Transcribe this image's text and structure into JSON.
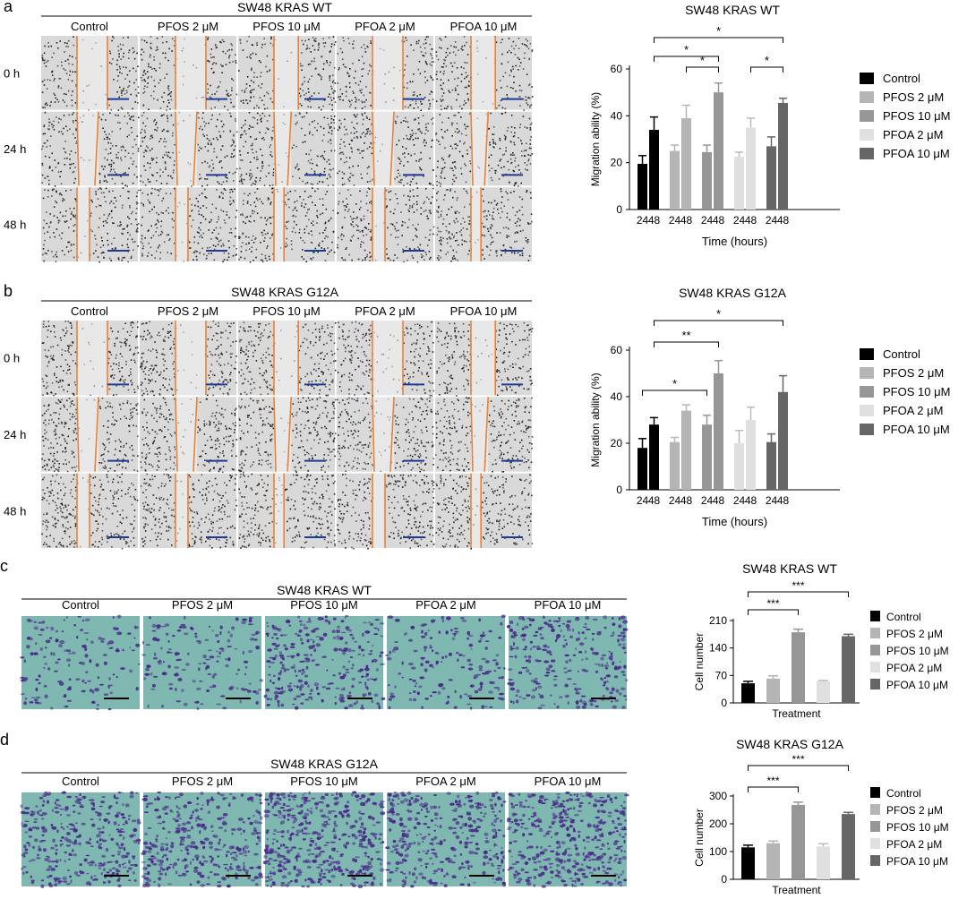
{
  "panels": {
    "a": {
      "letter": "a",
      "title": "SW48 KRAS WT",
      "conditions": [
        "Control",
        "PFOS 2 μM",
        "PFOS 10 μM",
        "PFOA 2 μM",
        "PFOA 10 μM"
      ],
      "rows": [
        "0 h",
        "24 h",
        "48 h"
      ],
      "scale_bar_color": "#1f3a93",
      "gap_line_color": "#e8823a"
    },
    "b": {
      "letter": "b",
      "title": "SW48 KRAS G12A",
      "conditions": [
        "Control",
        "PFOS 2 μM",
        "PFOS 10 μM",
        "PFOA 2 μM",
        "PFOA 10 μM"
      ],
      "rows": [
        "0 h",
        "24 h",
        "48 h"
      ]
    },
    "c": {
      "letter": "c",
      "title": "SW48 KRAS WT",
      "conditions": [
        "Control",
        "PFOS 2 μM",
        "PFOS 10 μM",
        "PFOA 2 μM",
        "PFOA 10 μM"
      ],
      "stain_bg": "#7fb8b0",
      "cell_color": "#4a2a8a"
    },
    "d": {
      "letter": "d",
      "title": "SW48 KRAS G12A",
      "conditions": [
        "Control",
        "PFOS 2 μM",
        "PFOS 10 μM",
        "PFOA 2 μM",
        "PFOA 10 μM"
      ]
    }
  },
  "chart_data": [
    {
      "type": "bar",
      "title": "SW48 KRAS WT",
      "xlabel": "Time (hours)",
      "ylabel": "Migration ability (%)",
      "ylim": [
        0,
        60
      ],
      "yticks": [
        0,
        20,
        40,
        60
      ],
      "legend_position": "right",
      "groups": [
        "24",
        "48"
      ],
      "series": [
        {
          "name": "Control",
          "color": "#000000",
          "values": [
            19.5,
            34
          ],
          "errors": [
            3.5,
            5.5
          ]
        },
        {
          "name": "PFOS 2 μM",
          "color": "#b5b5b5",
          "values": [
            25,
            39
          ],
          "errors": [
            2.5,
            5.5
          ]
        },
        {
          "name": "PFOS 10 μM",
          "color": "#969696",
          "values": [
            24.5,
            50
          ],
          "errors": [
            3,
            4
          ]
        },
        {
          "name": "PFOA 2 μM",
          "color": "#e0e0e0",
          "values": [
            22.5,
            35
          ],
          "errors": [
            2,
            4
          ]
        },
        {
          "name": "PFOA 10 μM",
          "color": "#666666",
          "values": [
            27,
            45.5
          ],
          "errors": [
            4,
            2
          ]
        }
      ],
      "significance": [
        {
          "label": "*",
          "from": [
            0,
            1
          ],
          "to": [
            4,
            1
          ],
          "level": 0
        },
        {
          "label": "*",
          "from": [
            0,
            1
          ],
          "to": [
            2,
            1
          ],
          "level": 1
        },
        {
          "label": "*",
          "from": [
            1,
            1
          ],
          "to": [
            2,
            1
          ],
          "level": 2
        },
        {
          "label": "*",
          "from": [
            3,
            1
          ],
          "to": [
            4,
            1
          ],
          "level": 2
        }
      ]
    },
    {
      "type": "bar",
      "title": "SW48 KRAS G12A",
      "xlabel": "Time (hours)",
      "ylabel": "Migration ability (%)",
      "ylim": [
        0,
        60
      ],
      "yticks": [
        0,
        20,
        40,
        60
      ],
      "legend_position": "right",
      "groups": [
        "24",
        "48"
      ],
      "series": [
        {
          "name": "Control",
          "color": "#000000",
          "values": [
            18,
            28
          ],
          "errors": [
            4,
            3
          ]
        },
        {
          "name": "PFOS 2 μM",
          "color": "#b5b5b5",
          "values": [
            20.5,
            34
          ],
          "errors": [
            2,
            2.5
          ]
        },
        {
          "name": "PFOS 10 μM",
          "color": "#969696",
          "values": [
            28,
            50
          ],
          "errors": [
            4,
            5.5
          ]
        },
        {
          "name": "PFOA 2 μM",
          "color": "#e0e0e0",
          "values": [
            20,
            30
          ],
          "errors": [
            5.5,
            5.5
          ]
        },
        {
          "name": "PFOA 10 μM",
          "color": "#666666",
          "values": [
            20.5,
            42
          ],
          "errors": [
            3.5,
            7
          ]
        }
      ],
      "significance": [
        {
          "label": "*",
          "from": [
            0,
            1
          ],
          "to": [
            4,
            1
          ],
          "level": 0
        },
        {
          "label": "**",
          "from": [
            0,
            1
          ],
          "to": [
            2,
            1
          ],
          "level": 1
        },
        {
          "label": "*",
          "from": [
            0,
            0
          ],
          "to": [
            2,
            0
          ],
          "level": 2
        }
      ]
    },
    {
      "type": "bar",
      "title": "SW48 KRAS WT",
      "xlabel": "Treatment",
      "ylabel": "Cell number",
      "ylim": [
        0,
        210
      ],
      "yticks": [
        0,
        70,
        140,
        210
      ],
      "legend_position": "right",
      "categories": [
        "Control",
        "PFOS 2 μM",
        "PFOS 10 μM",
        "PFOA 2 μM",
        "PFOA 10 μM"
      ],
      "colors": [
        "#000000",
        "#b5b5b5",
        "#969696",
        "#e0e0e0",
        "#666666"
      ],
      "values": [
        50,
        62,
        180,
        55,
        170
      ],
      "errors": [
        5,
        7,
        8,
        2,
        5
      ],
      "significance": [
        {
          "label": "***",
          "from": 0,
          "to": 4,
          "level": 0
        },
        {
          "label": "***",
          "from": 0,
          "to": 2,
          "level": 1
        }
      ]
    },
    {
      "type": "bar",
      "title": "SW48 KRAS G12A",
      "xlabel": "Treatment",
      "ylabel": "Cell number",
      "ylim": [
        0,
        300
      ],
      "yticks": [
        0,
        100,
        200,
        300
      ],
      "legend_position": "right",
      "categories": [
        "Control",
        "PFOS 2 μM",
        "PFOS 10 μM",
        "PFOA 2 μM",
        "PFOA 10 μM"
      ],
      "colors": [
        "#000000",
        "#b5b5b5",
        "#969696",
        "#e0e0e0",
        "#666666"
      ],
      "values": [
        115,
        130,
        268,
        118,
        235
      ],
      "errors": [
        8,
        8,
        10,
        10,
        6
      ],
      "significance": [
        {
          "label": "***",
          "from": 0,
          "to": 4,
          "level": 0
        },
        {
          "label": "***",
          "from": 0,
          "to": 2,
          "level": 1
        }
      ]
    }
  ]
}
